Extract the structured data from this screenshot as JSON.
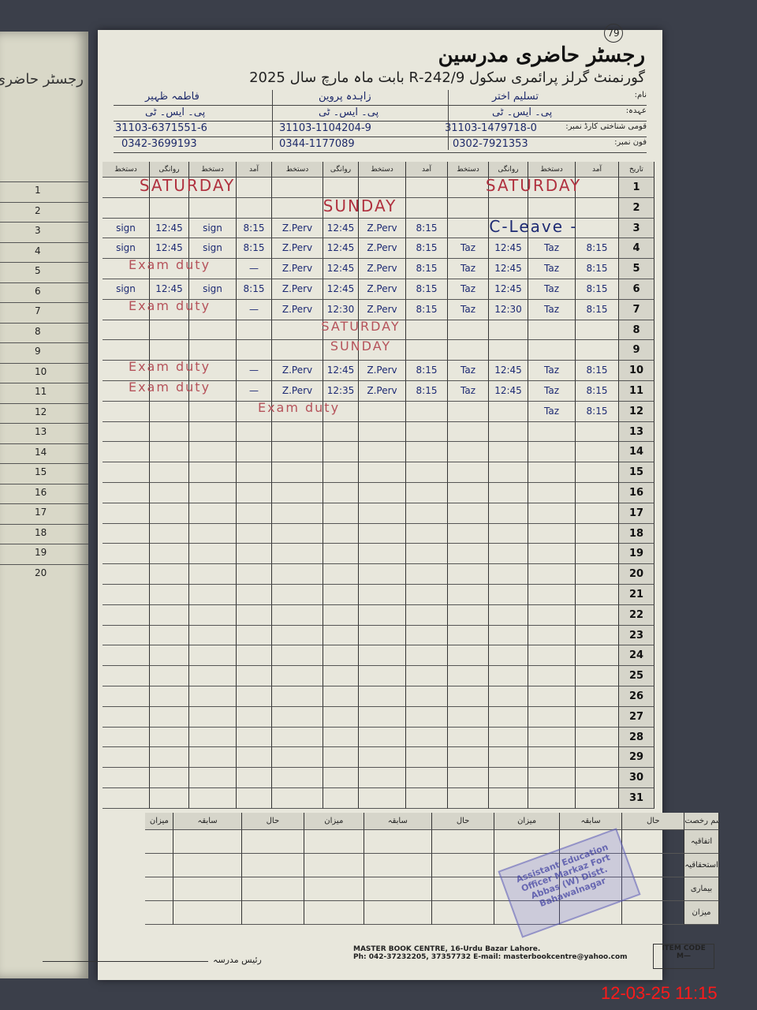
{
  "page_number": "79",
  "title": "رجسٹر حاضری مدرسین",
  "school_line": "گورنمنٹ گرلز پرائمری سکول 242/9-R بابت ماہ مارچ سال 2025",
  "labels": {
    "name": "نام:",
    "designation": "عہدہ:",
    "cnic": "قومی شناختی کارڈ نمبر:",
    "phone": "فون نمبر:"
  },
  "teachers": [
    {
      "name": "تسلیم اختر",
      "designation": "پی۔ ایس۔ ٹی",
      "cnic": "31103-1479718-0",
      "phone": "0302-7921353"
    },
    {
      "name": "زاہدہ پروین",
      "designation": "پی۔ ایس۔ ٹی",
      "cnic": "31103-1104204-9",
      "phone": "0344-1177089"
    },
    {
      "name": "فاطمہ ظہیر",
      "designation": "پی۔ ایس۔ ٹی",
      "cnic": "31103-6371551-6",
      "phone": "0342-3699193"
    }
  ],
  "column_headers": {
    "date": "تاریخ",
    "arrival": "آمد",
    "signature": "دستخط",
    "departure": "روانگی"
  },
  "rows": [
    {
      "d": "1"
    },
    {
      "d": "2"
    },
    {
      "d": "3",
      "t3": [
        "sign",
        "12:45",
        "sign",
        "8:15"
      ],
      "t2": [
        "Z.Perv",
        "12:45",
        "Z.Perv",
        "8:15"
      ]
    },
    {
      "d": "4",
      "t3": [
        "sign",
        "12:45",
        "sign",
        "8:15"
      ],
      "t2": [
        "Z.Perv",
        "12:45",
        "Z.Perv",
        "8:15"
      ],
      "t1": [
        "Taz",
        "12:45",
        "Taz",
        "8:15"
      ]
    },
    {
      "d": "5",
      "t3x": "—",
      "t2": [
        "Z.Perv",
        "12:45",
        "Z.Perv",
        "8:15"
      ],
      "t1": [
        "Taz",
        "12:45",
        "Taz",
        "8:15"
      ]
    },
    {
      "d": "6",
      "t3": [
        "sign",
        "12:45",
        "sign",
        "8:15"
      ],
      "t2": [
        "Z.Perv",
        "12:45",
        "Z.Perv",
        "8:15"
      ],
      "t1": [
        "Taz",
        "12:45",
        "Taz",
        "8:15"
      ]
    },
    {
      "d": "7",
      "t3x": "—",
      "t2": [
        "Z.Perv",
        "12:30",
        "Z.Perv",
        "8:15"
      ],
      "t1": [
        "Taz",
        "12:30",
        "Taz",
        "8:15"
      ]
    },
    {
      "d": "8"
    },
    {
      "d": "9"
    },
    {
      "d": "10",
      "t3x": "—",
      "t2": [
        "Z.Perv",
        "12:45",
        "Z.Perv",
        "8:15"
      ],
      "t1": [
        "Taz",
        "12:45",
        "Taz",
        "8:15"
      ]
    },
    {
      "d": "11",
      "t3x": "—",
      "t2": [
        "Z.Perv",
        "12:35",
        "Z.Perv",
        "8:15"
      ],
      "t1": [
        "Taz",
        "12:45",
        "Taz",
        "8:15"
      ]
    },
    {
      "d": "12",
      "t1": [
        "",
        "",
        "Taz",
        "8:15"
      ]
    },
    {
      "d": "13"
    },
    {
      "d": "14"
    },
    {
      "d": "15"
    },
    {
      "d": "16"
    },
    {
      "d": "17"
    },
    {
      "d": "18"
    },
    {
      "d": "19"
    },
    {
      "d": "20"
    },
    {
      "d": "21"
    },
    {
      "d": "22"
    },
    {
      "d": "23"
    },
    {
      "d": "24"
    },
    {
      "d": "25"
    },
    {
      "d": "26"
    },
    {
      "d": "27"
    },
    {
      "d": "28"
    },
    {
      "d": "29"
    },
    {
      "d": "30"
    },
    {
      "d": "31"
    }
  ],
  "notes": {
    "saturday_1": "SATURDAY",
    "saturday_1b": "SATURDAY",
    "sunday_2": "SUNDAY",
    "c_leave_3": "C-Leave -",
    "exam_5": "Exam duty",
    "exam_7": "Exam duty",
    "saturday_8": "SATURDAY",
    "sunday_9": "SUNDAY",
    "exam_10": "Exam duty",
    "exam_11": "Exam duty",
    "exam_12": "Exam duty"
  },
  "summary": {
    "headers": [
      "قسم رخصت",
      "حال",
      "سابقہ",
      "میزان",
      "حال",
      "سابقہ",
      "میزان",
      "حال",
      "سابقہ",
      "میزان"
    ],
    "rows": [
      "اتفاقیہ",
      "استحقاقیہ",
      "بیماری",
      "میزان"
    ]
  },
  "stamp_text": "Assistant Education Officer Markaz Fort Abbas (W) Distt. Bahawalnagar",
  "footer": {
    "line1": "MASTER BOOK CENTRE, 16-Urdu Bazar Lahore.",
    "line2": "Ph: 042-37232205, 37357732 E-mail: masterbookcentre@yahoo.com",
    "item_code_label": "ITEM CODE",
    "item_code": "M—",
    "head_sign": "رئیس مدرسہ"
  },
  "timestamp": "12-03-25  11:15",
  "colors": {
    "ink_blue": "#1d2a73",
    "ink_red": "#b0313f",
    "paper": "#e8e7dc",
    "timestamp": "#ff1a1a"
  }
}
